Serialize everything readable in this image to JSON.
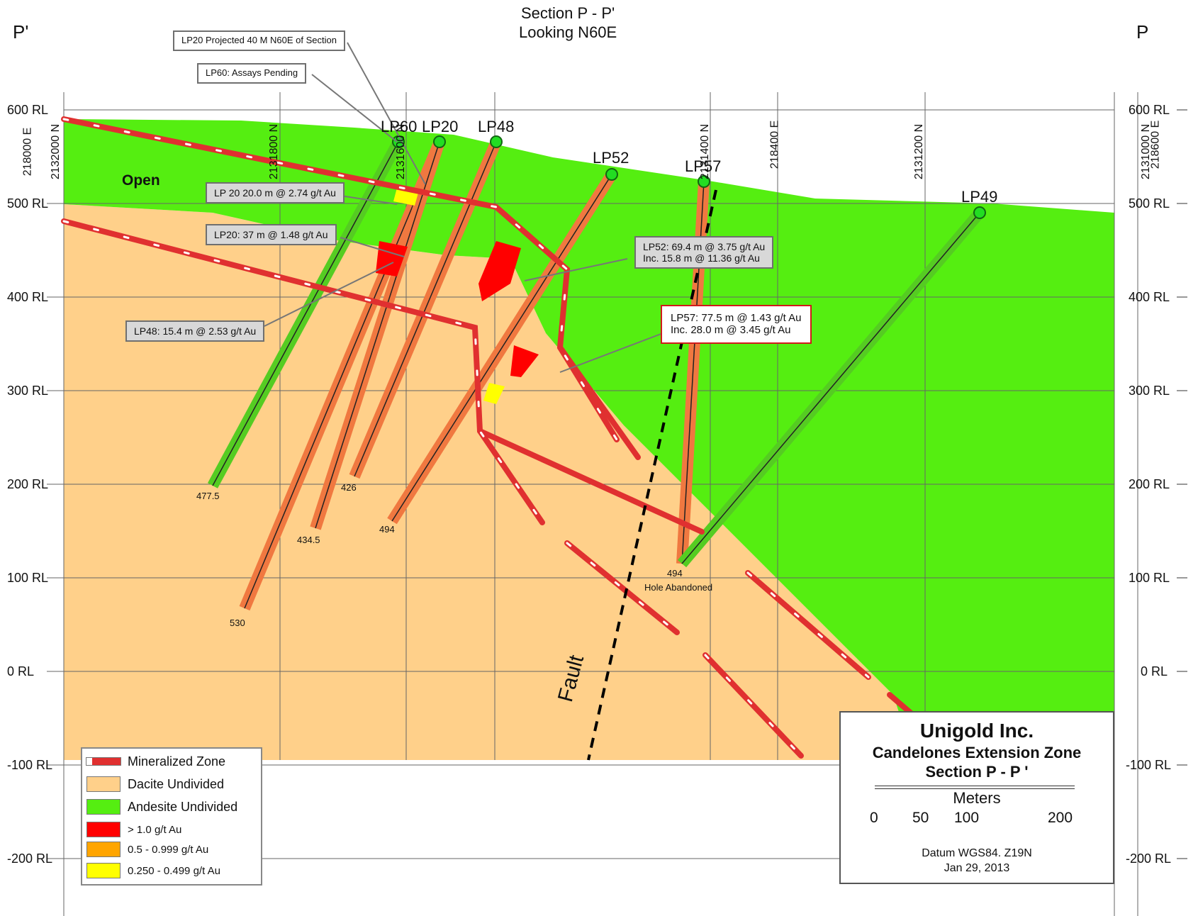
{
  "title": {
    "line1": "Section P - P'",
    "line2": "Looking N60E"
  },
  "ends": {
    "left": "P'",
    "right": "P"
  },
  "rl_labels": [
    "600 RL",
    "500 RL",
    "400 RL",
    "300 RL",
    "200 RL",
    "100 RL",
    "0 RL",
    "-100 RL",
    "-200 RL"
  ],
  "grid_labels": {
    "left_n": "2132000 N",
    "left_e": "218000 E",
    "n_1800": "2131800 N",
    "e_upper": "2131600 N",
    "n_1400": "2131400 N",
    "e_8400": "218400 E",
    "n_1200": "2131200 N",
    "right_n": "2131000 N",
    "right_e": "218600 E"
  },
  "holes": {
    "lp60": "LP60",
    "lp20": "LP20",
    "lp48": "LP48",
    "lp52": "LP52",
    "lp57": "LP57",
    "lp49": "LP49"
  },
  "depths": {
    "d4775": "477.5",
    "d4345": "434.5",
    "d426": "426",
    "d494a": "494",
    "d530": "530",
    "d494b": "494",
    "abandoned": "Hole Abandoned"
  },
  "open_label": "Open",
  "fault_label": "Fault",
  "callouts": {
    "projected": "LP20 Projected 40 M N60E of Section",
    "lp60": "LP60: Assays Pending",
    "lp20a": "LP 20 20.0 m @ 2.74 g/t Au",
    "lp20b": "LP20: 37 m @ 1.48 g/t Au",
    "lp48": "LP48: 15.4 m @ 2.53 g/t Au",
    "lp52_1": "LP52: 69.4 m @ 3.75 g/t Au",
    "lp52_2": "Inc. 15.8 m @ 11.36 g/t Au",
    "lp57_1": "LP57: 77.5 m @ 1.43 g/t Au",
    "lp57_2": "Inc. 28.0 m @ 3.45 g/t Au"
  },
  "legend": [
    {
      "label": "Mineralized Zone",
      "color": "#e03030"
    },
    {
      "label": "Dacite Undivided",
      "color": "#ffd08a"
    },
    {
      "label": "Andesite Undivided",
      "color": "#55ee11"
    },
    {
      "label": "> 1.0 g/t Au",
      "color": "#ff0000"
    },
    {
      "label": "0.5 - 0.999 g/t Au",
      "color": "#ffa500"
    },
    {
      "label": "0.250 - 0.499 g/t Au",
      "color": "#ffff00"
    }
  ],
  "titlebox": {
    "company": "Unigold Inc.",
    "project": "Candelones Extension Zone",
    "section": "Section P - P '",
    "units": "Meters",
    "scale": [
      "0",
      "50",
      "100",
      "200"
    ],
    "datum": "Datum WGS84. Z19N",
    "date": "Jan 29, 2013"
  },
  "colors": {
    "dacite": "#ffd08a",
    "andesite": "#55ee11",
    "zone": "#e03030",
    "core": "#f07840"
  }
}
